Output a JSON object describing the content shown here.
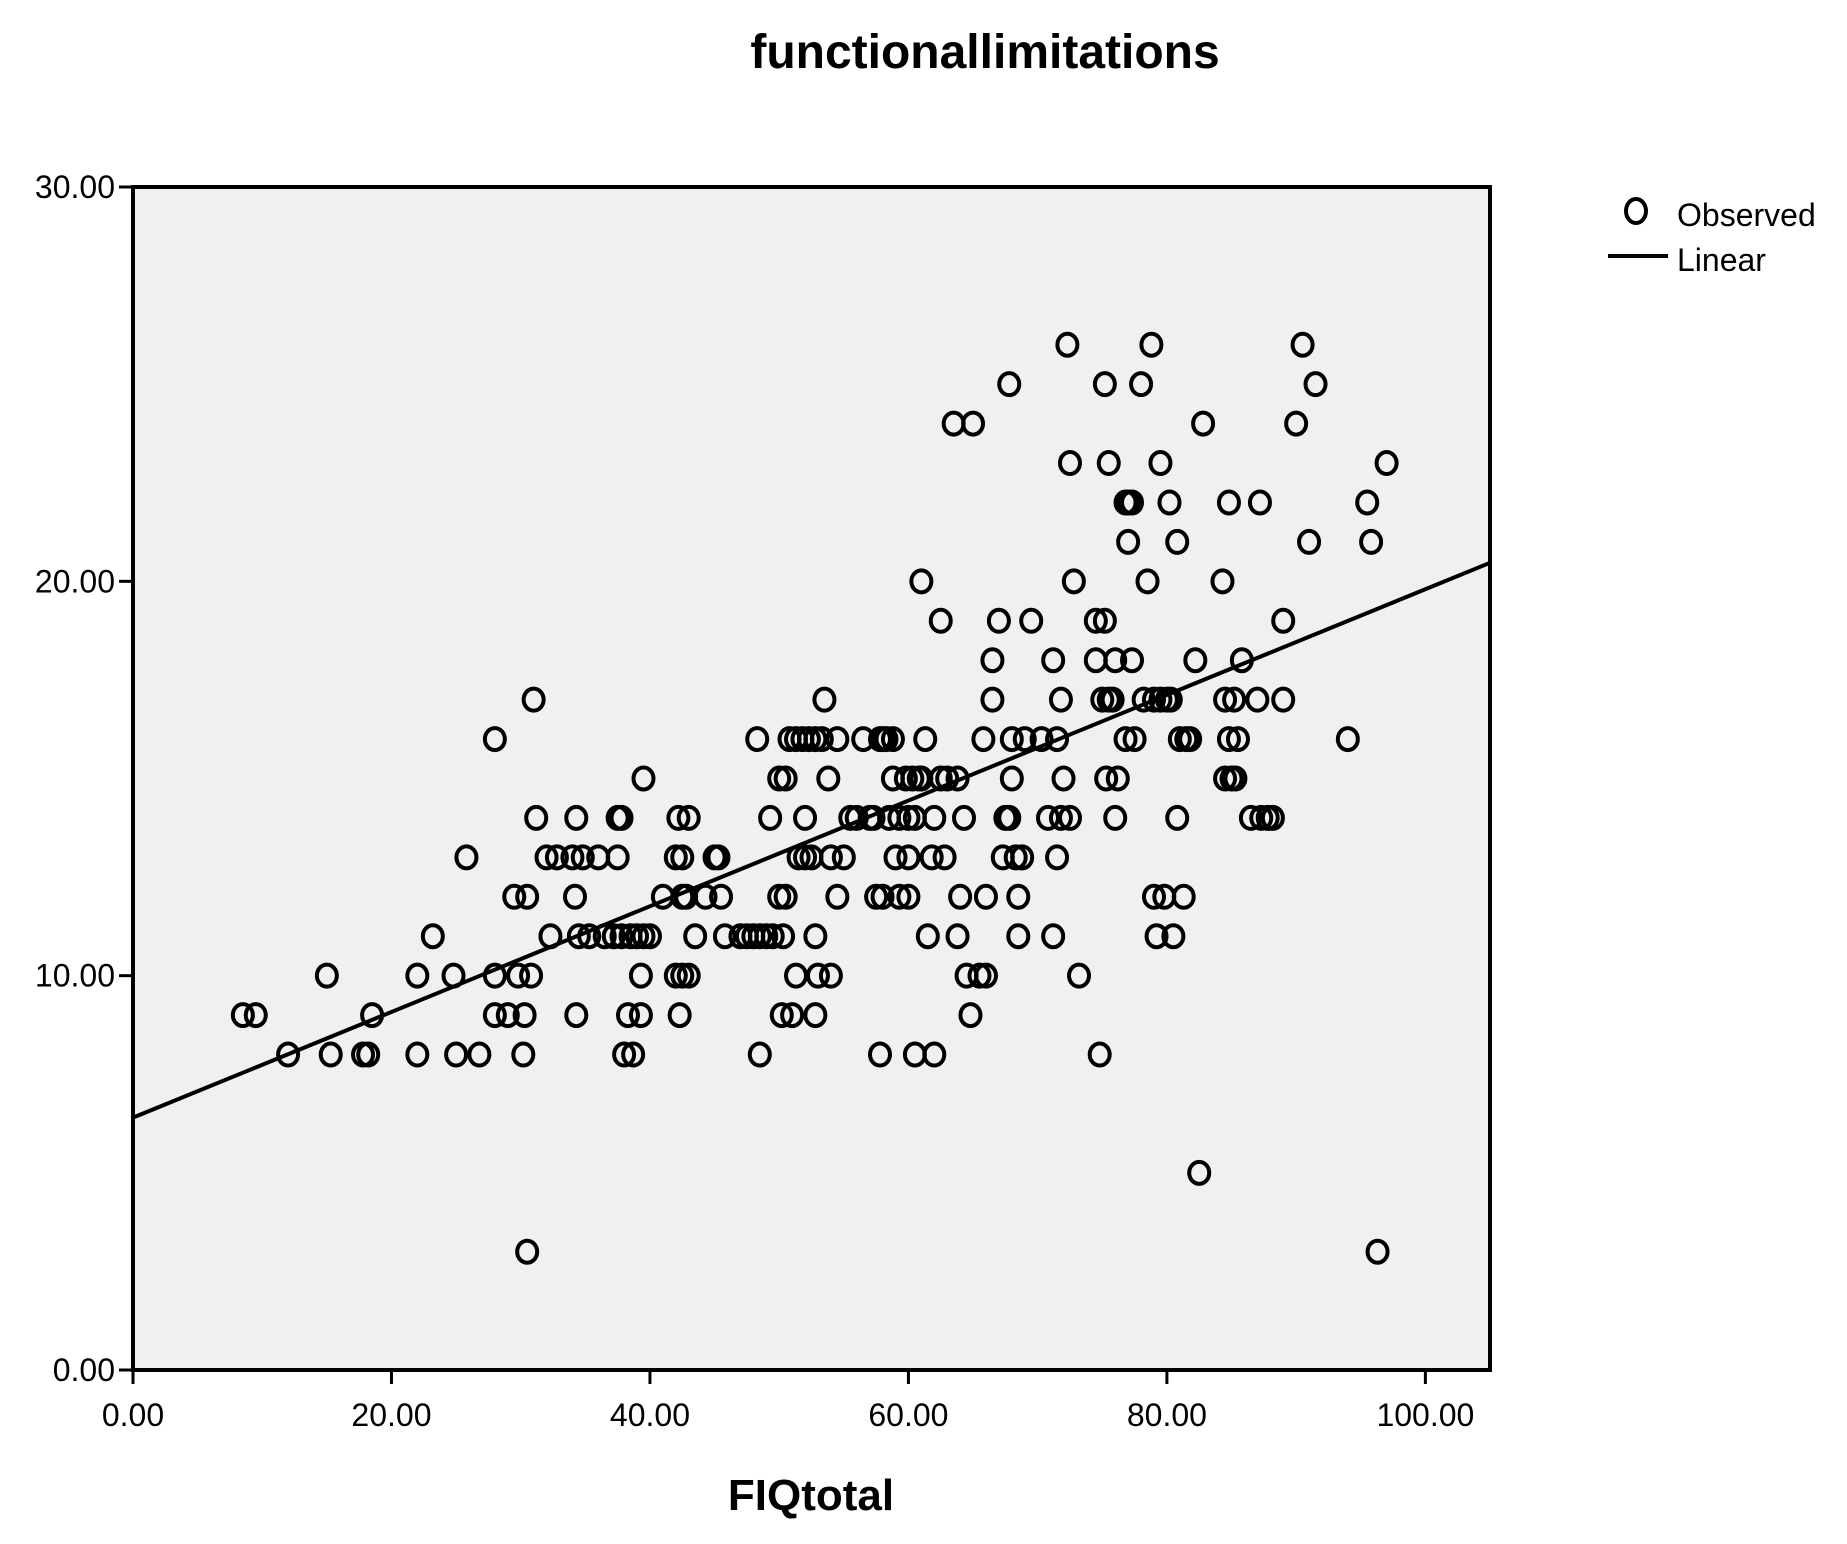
{
  "chart_data": {
    "type": "scatter",
    "title": "functionallimitations",
    "xlabel": "FIQtotal",
    "ylabel": "",
    "xlim": [
      0,
      105
    ],
    "ylim": [
      0,
      30
    ],
    "xticks": [
      "0.00",
      "20.00",
      "40.00",
      "60.00",
      "80.00",
      "100.00"
    ],
    "yticks": [
      "0.00",
      "10.00",
      "20.00",
      "30.00"
    ],
    "legend": {
      "position": "top-right",
      "entries": [
        {
          "label": "Observed",
          "marker": "circle"
        },
        {
          "label": "Linear",
          "marker": "line"
        }
      ]
    },
    "colors": {
      "plot_background": "#f0f0f0",
      "marker": "#000000",
      "fit_line": "#000000"
    },
    "grid": false,
    "series": [
      {
        "name": "Observed",
        "points": [
          [
            8.5,
            9
          ],
          [
            9.5,
            9
          ],
          [
            12,
            8
          ],
          [
            15,
            10
          ],
          [
            15.3,
            8
          ],
          [
            17.8,
            8
          ],
          [
            18.2,
            8
          ],
          [
            18.5,
            9
          ],
          [
            22,
            8
          ],
          [
            22,
            10
          ],
          [
            23.2,
            11
          ],
          [
            24.8,
            10
          ],
          [
            25,
            8
          ],
          [
            25.8,
            13
          ],
          [
            26.8,
            8
          ],
          [
            28,
            16
          ],
          [
            28,
            10
          ],
          [
            28,
            9
          ],
          [
            29,
            9
          ],
          [
            29.5,
            12
          ],
          [
            29.8,
            10
          ],
          [
            30.2,
            8
          ],
          [
            30.3,
            9
          ],
          [
            30.5,
            12
          ],
          [
            30.5,
            3
          ],
          [
            30.8,
            10
          ],
          [
            31,
            17
          ],
          [
            31.2,
            14
          ],
          [
            32,
            13
          ],
          [
            32.3,
            11
          ],
          [
            32.8,
            13
          ],
          [
            34,
            13
          ],
          [
            34.2,
            12
          ],
          [
            34.3,
            14
          ],
          [
            34.3,
            9
          ],
          [
            34.5,
            11
          ],
          [
            34.8,
            13
          ],
          [
            35.3,
            11
          ],
          [
            36,
            13
          ],
          [
            36.5,
            11
          ],
          [
            37.2,
            11
          ],
          [
            37.5,
            13
          ],
          [
            37.5,
            14
          ],
          [
            37.8,
            14
          ],
          [
            37.8,
            11
          ],
          [
            38,
            8
          ],
          [
            38.3,
            9
          ],
          [
            38.5,
            11
          ],
          [
            38.7,
            8
          ],
          [
            39,
            11
          ],
          [
            39.3,
            9
          ],
          [
            39.3,
            10
          ],
          [
            39.5,
            11
          ],
          [
            39.5,
            15
          ],
          [
            40,
            11
          ],
          [
            41,
            12
          ],
          [
            42,
            13
          ],
          [
            42,
            10
          ],
          [
            42.2,
            14
          ],
          [
            42.3,
            9
          ],
          [
            42.5,
            13
          ],
          [
            42.5,
            10
          ],
          [
            42.5,
            12
          ],
          [
            42.8,
            12
          ],
          [
            43,
            14
          ],
          [
            43,
            10
          ],
          [
            43.5,
            11
          ],
          [
            44.3,
            12
          ],
          [
            45,
            13
          ],
          [
            45.3,
            13
          ],
          [
            45.5,
            12
          ],
          [
            45.8,
            11
          ],
          [
            47,
            11
          ],
          [
            47.5,
            11
          ],
          [
            48,
            11
          ],
          [
            48.3,
            16
          ],
          [
            48.5,
            8
          ],
          [
            48.5,
            11
          ],
          [
            49,
            11
          ],
          [
            49.3,
            14
          ],
          [
            49.5,
            11
          ],
          [
            50,
            12
          ],
          [
            50,
            15
          ],
          [
            50.2,
            9
          ],
          [
            50.3,
            11
          ],
          [
            50.5,
            15
          ],
          [
            50.5,
            12
          ],
          [
            50.8,
            16
          ],
          [
            51,
            9
          ],
          [
            51.3,
            16
          ],
          [
            51.3,
            10
          ],
          [
            51.5,
            13
          ],
          [
            51.8,
            16
          ],
          [
            52,
            14
          ],
          [
            52,
            13
          ],
          [
            52.3,
            16
          ],
          [
            52.5,
            13
          ],
          [
            52.8,
            9
          ],
          [
            52.8,
            11
          ],
          [
            52.8,
            16
          ],
          [
            53,
            10
          ],
          [
            53.3,
            16
          ],
          [
            53.5,
            17
          ],
          [
            53.8,
            15
          ],
          [
            54,
            10
          ],
          [
            54,
            13
          ],
          [
            54.5,
            16
          ],
          [
            54.5,
            12
          ],
          [
            55,
            13
          ],
          [
            55.5,
            14
          ],
          [
            56,
            14
          ],
          [
            56.5,
            16
          ],
          [
            57,
            14
          ],
          [
            57.3,
            14
          ],
          [
            57.5,
            12
          ],
          [
            57.8,
            16
          ],
          [
            57.8,
            8
          ],
          [
            58,
            12
          ],
          [
            58,
            16
          ],
          [
            58.3,
            16
          ],
          [
            58.5,
            14
          ],
          [
            58.8,
            15
          ],
          [
            58.8,
            16
          ],
          [
            59,
            13
          ],
          [
            59.3,
            12
          ],
          [
            59.3,
            14
          ],
          [
            59.8,
            15
          ],
          [
            60,
            12
          ],
          [
            60,
            14
          ],
          [
            60,
            13
          ],
          [
            60.3,
            15
          ],
          [
            60.5,
            14
          ],
          [
            60.5,
            8
          ],
          [
            60.8,
            15
          ],
          [
            61,
            15
          ],
          [
            61,
            20
          ],
          [
            61.3,
            16
          ],
          [
            61.5,
            11
          ],
          [
            61.8,
            13
          ],
          [
            62,
            14
          ],
          [
            62,
            8
          ],
          [
            62.5,
            19
          ],
          [
            62.5,
            15
          ],
          [
            62.8,
            13
          ],
          [
            63,
            15
          ],
          [
            63.5,
            24
          ],
          [
            63.8,
            11
          ],
          [
            63.8,
            15
          ],
          [
            64,
            12
          ],
          [
            64.3,
            14
          ],
          [
            64.5,
            10
          ],
          [
            64.8,
            9
          ],
          [
            65,
            24
          ],
          [
            65.5,
            10
          ],
          [
            65.8,
            16
          ],
          [
            66,
            12
          ],
          [
            66,
            10
          ],
          [
            66.5,
            18
          ],
          [
            66.5,
            17
          ],
          [
            67,
            19
          ],
          [
            67.3,
            13
          ],
          [
            67.5,
            14
          ],
          [
            67.8,
            25
          ],
          [
            67.8,
            14
          ],
          [
            68,
            15
          ],
          [
            68,
            16
          ],
          [
            68.3,
            13
          ],
          [
            68.5,
            11
          ],
          [
            68.5,
            12
          ],
          [
            68.8,
            13
          ],
          [
            69,
            16
          ],
          [
            69.5,
            19
          ],
          [
            70.3,
            16
          ],
          [
            70.8,
            14
          ],
          [
            71.2,
            18
          ],
          [
            71.2,
            11
          ],
          [
            71.5,
            13
          ],
          [
            71.5,
            16
          ],
          [
            71.8,
            17
          ],
          [
            71.8,
            14
          ],
          [
            72,
            15
          ],
          [
            72.3,
            26
          ],
          [
            72.5,
            14
          ],
          [
            72.5,
            23
          ],
          [
            72.8,
            20
          ],
          [
            73.2,
            10
          ],
          [
            74.5,
            19
          ],
          [
            74.5,
            18
          ],
          [
            74.8,
            8
          ],
          [
            75,
            17
          ],
          [
            75.2,
            19
          ],
          [
            75.2,
            25
          ],
          [
            75.3,
            15
          ],
          [
            75.5,
            17
          ],
          [
            75.5,
            23
          ],
          [
            75.8,
            17
          ],
          [
            76,
            18
          ],
          [
            76,
            14
          ],
          [
            76.2,
            15
          ],
          [
            76.8,
            16
          ],
          [
            76.8,
            22
          ],
          [
            77,
            21
          ],
          [
            77,
            22
          ],
          [
            77.3,
            22
          ],
          [
            77.3,
            18
          ],
          [
            77.5,
            16
          ],
          [
            78,
            25
          ],
          [
            78.2,
            17
          ],
          [
            78.5,
            20
          ],
          [
            78.8,
            26
          ],
          [
            79,
            17
          ],
          [
            79,
            12
          ],
          [
            79.2,
            11
          ],
          [
            79.5,
            23
          ],
          [
            79.5,
            17
          ],
          [
            79.8,
            12
          ],
          [
            80,
            17
          ],
          [
            80.2,
            22
          ],
          [
            80.3,
            17
          ],
          [
            80.5,
            11
          ],
          [
            80.8,
            21
          ],
          [
            80.8,
            14
          ],
          [
            81,
            16
          ],
          [
            81.3,
            12
          ],
          [
            81.5,
            16
          ],
          [
            81.8,
            16
          ],
          [
            82.2,
            18
          ],
          [
            82.5,
            5
          ],
          [
            82.8,
            24
          ],
          [
            84.3,
            20
          ],
          [
            84.5,
            17
          ],
          [
            84.5,
            15
          ],
          [
            84.8,
            22
          ],
          [
            84.8,
            16
          ],
          [
            85,
            15
          ],
          [
            85.2,
            17
          ],
          [
            85.3,
            15
          ],
          [
            85.5,
            16
          ],
          [
            85.8,
            18
          ],
          [
            86.5,
            14
          ],
          [
            87,
            17
          ],
          [
            87.2,
            22
          ],
          [
            87.3,
            14
          ],
          [
            87.8,
            14
          ],
          [
            88.2,
            14
          ],
          [
            89,
            17
          ],
          [
            89,
            19
          ],
          [
            90,
            24
          ],
          [
            90.5,
            26
          ],
          [
            91,
            21
          ],
          [
            91.5,
            25
          ],
          [
            94,
            16
          ],
          [
            95.5,
            22
          ],
          [
            95.8,
            21
          ],
          [
            96.3,
            3
          ],
          [
            97,
            23
          ]
        ]
      },
      {
        "name": "Linear",
        "intercept": 6.4,
        "slope": 0.134
      }
    ]
  }
}
